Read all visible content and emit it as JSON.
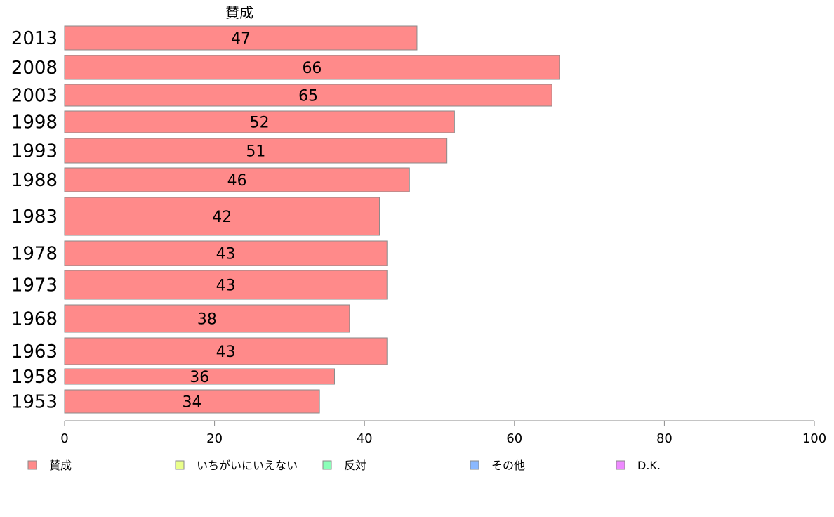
{
  "chart_data": {
    "type": "bar",
    "orientation": "horizontal",
    "categories": [
      "2013",
      "2008",
      "2003",
      "1998",
      "1993",
      "1988",
      "1983",
      "1978",
      "1973",
      "1968",
      "1963",
      "1958",
      "1953"
    ],
    "series": [
      {
        "name": "賛成",
        "values": [
          47,
          66,
          65,
          52,
          51,
          46,
          42,
          43,
          43,
          38,
          43,
          36,
          34
        ]
      }
    ],
    "series_title": "賛成",
    "value_labels": [
      "47",
      "66",
      "65",
      "52",
      "51",
      "46",
      "42",
      "43",
      "43",
      "38",
      "43",
      "36",
      "34"
    ],
    "xlim": [
      0,
      100
    ],
    "x_ticks": [
      0,
      20,
      40,
      60,
      80,
      100
    ],
    "x_tick_labels": [
      "0",
      "20",
      "40",
      "60",
      "80",
      "100"
    ],
    "grid": false,
    "legend": {
      "placement": "bottom",
      "entries": [
        {
          "label": "賛成",
          "color": "#ff8a8a"
        },
        {
          "label": "いちがいにいえない",
          "color": "#eaff8a"
        },
        {
          "label": "反対",
          "color": "#8affb8"
        },
        {
          "label": "その他",
          "color": "#8ab8ff"
        },
        {
          "label": "D.K.",
          "color": "#ee8aff"
        }
      ]
    },
    "colors": {
      "bar": "#ff8a8a",
      "bar_stroke": "#8a8a8a",
      "axis": "#8a8a8a"
    }
  }
}
